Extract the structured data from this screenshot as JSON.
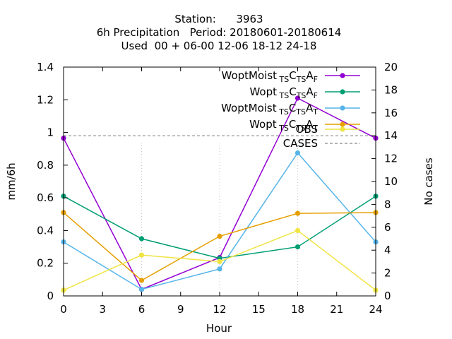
{
  "chart_data": {
    "type": "line",
    "title_lines": [
      "Station:      3963",
      "6h Precipitation   Period: 20180601-20180614",
      "Used  00 + 06-00 12-06 18-12 24-18"
    ],
    "xlabel": "Hour",
    "ylabel": "mm/6h",
    "y2label": "No cases",
    "xlim": [
      0,
      24
    ],
    "ylim": [
      0,
      1.4
    ],
    "y2lim": [
      0,
      20
    ],
    "x_ticks": [
      0,
      3,
      6,
      9,
      12,
      15,
      18,
      21,
      24
    ],
    "y_ticks": [
      0,
      0.2,
      0.4,
      0.6,
      0.8,
      1,
      1.2,
      1.4
    ],
    "y_tick_labels": [
      "0",
      "0.2",
      "0.4",
      "0.6",
      "0.8",
      "1",
      "1.2",
      "1.4"
    ],
    "y2_ticks": [
      0,
      2,
      4,
      6,
      8,
      10,
      12,
      14,
      16,
      18,
      20
    ],
    "grid": "dotted, partial",
    "legend_position": "top-right",
    "x": [
      0,
      6,
      12,
      18,
      24
    ],
    "series": [
      {
        "name": "WoptMoist_TS C_TS A_F",
        "legend": {
          "main": "WoptMoist",
          "sub1": "TS",
          "c": "C",
          "sub2": "TS",
          "a": "A",
          "sub3": "F"
        },
        "color": "#9400d3",
        "marker": "circle",
        "values": [
          0.965,
          0.04,
          0.235,
          1.21,
          0.965
        ]
      },
      {
        "name": "Wopt_TS C_TS A_F",
        "legend": {
          "main": "Wopt",
          "sub1": "TS",
          "c": "C",
          "sub2": "TS",
          "a": "A",
          "sub3": "F"
        },
        "color": "#009e73",
        "marker": "circle",
        "values": [
          0.61,
          0.35,
          0.23,
          0.3,
          0.61
        ]
      },
      {
        "name": "WoptMoist_TS C_TS A_T",
        "legend": {
          "main": "WoptMoist",
          "sub1": "TS",
          "c": "C",
          "sub2": "TS",
          "a": "A",
          "sub3": "T"
        },
        "color": "#56b4e9",
        "marker": "circle",
        "values": [
          0.33,
          0.04,
          0.165,
          0.875,
          0.33
        ]
      },
      {
        "name": "Wopt_TS C_TS A_T",
        "legend": {
          "main": "Wopt",
          "sub1": "TS",
          "c": "C",
          "sub2": "TS",
          "a": "A",
          "sub3": "T"
        },
        "color": "#e69f00",
        "marker": "circle",
        "values": [
          0.51,
          0.095,
          0.365,
          0.505,
          0.51
        ]
      },
      {
        "name": "OBS",
        "legend": {
          "main": "OBS"
        },
        "color": "#f0e442",
        "marker": "circle",
        "values": [
          0.035,
          0.25,
          0.21,
          0.4,
          0.035
        ]
      }
    ],
    "cases": {
      "name": "CASES",
      "axis": "y2",
      "color": "#888888",
      "style": "dashed",
      "value": 14
    }
  }
}
